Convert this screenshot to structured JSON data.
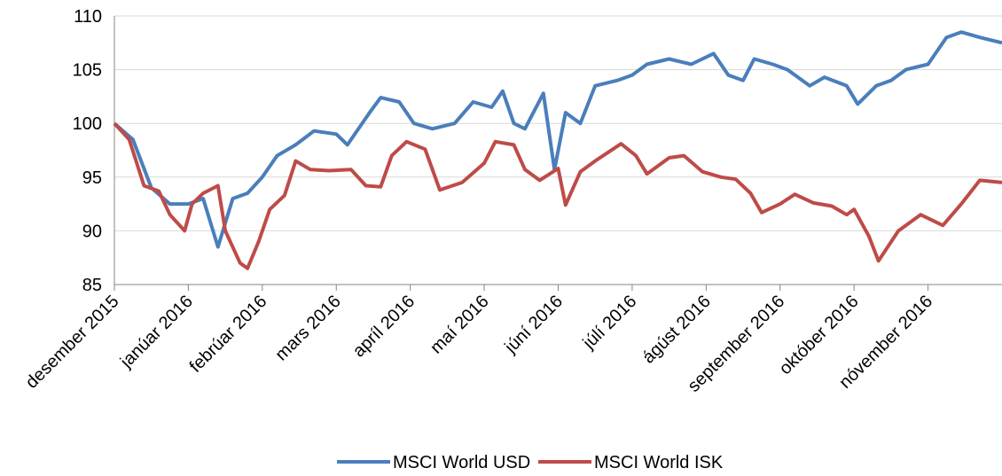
{
  "chart_data": {
    "type": "line",
    "xlim": [
      0,
      12
    ],
    "xticks": [
      {
        "value": 0,
        "label": "desember 2015"
      },
      {
        "value": 1,
        "label": "janúar 2016"
      },
      {
        "value": 2,
        "label": "febrúar 2016"
      },
      {
        "value": 3,
        "label": "mars 2016"
      },
      {
        "value": 4,
        "label": "apríl 2016"
      },
      {
        "value": 5,
        "label": "maí 2016"
      },
      {
        "value": 6,
        "label": "júní 2016"
      },
      {
        "value": 7,
        "label": "júlí 2016"
      },
      {
        "value": 8,
        "label": "ágúst 2016"
      },
      {
        "value": 9,
        "label": "september 2016"
      },
      {
        "value": 10,
        "label": "október 2016"
      },
      {
        "value": 11,
        "label": "nóvember 2016"
      }
    ],
    "ylim": [
      85,
      110
    ],
    "yticks": [
      85,
      90,
      95,
      100,
      105,
      110
    ],
    "grid": true,
    "legend": "bottom",
    "series": [
      {
        "name": "MSCI World USD",
        "color": "#4a7ebb",
        "x": [
          0,
          0.25,
          0.5,
          0.75,
          1.0,
          1.2,
          1.4,
          1.6,
          1.8,
          2.0,
          2.2,
          2.45,
          2.7,
          3.0,
          3.15,
          3.45,
          3.6,
          3.85,
          4.05,
          4.3,
          4.6,
          4.85,
          5.1,
          5.25,
          5.4,
          5.55,
          5.8,
          5.95,
          6.1,
          6.3,
          6.5,
          6.8,
          7.0,
          7.2,
          7.5,
          7.8,
          8.1,
          8.3,
          8.5,
          8.65,
          8.9,
          9.1,
          9.4,
          9.6,
          9.9,
          10.05,
          10.3,
          10.5,
          10.7,
          11.0,
          11.25,
          11.45,
          11.7,
          12.0
        ],
        "values": [
          100,
          98.5,
          94,
          92.5,
          92.5,
          93,
          88.5,
          93,
          93.5,
          95,
          97,
          98,
          99.3,
          99,
          98,
          101,
          102.4,
          102,
          100,
          99.5,
          100,
          102,
          101.5,
          103,
          100,
          99.5,
          102.8,
          95.7,
          101,
          100,
          103.5,
          104,
          104.5,
          105.5,
          106,
          105.5,
          106.5,
          104.5,
          104,
          106,
          105.5,
          105,
          103.5,
          104.3,
          103.5,
          101.8,
          103.5,
          104,
          105,
          105.5,
          108,
          108.5,
          108,
          107.5
        ]
      },
      {
        "name": "MSCI World ISK",
        "color": "#be4b48",
        "x": [
          0,
          0.2,
          0.4,
          0.6,
          0.75,
          0.95,
          1.05,
          1.2,
          1.4,
          1.5,
          1.7,
          1.8,
          1.95,
          2.1,
          2.3,
          2.45,
          2.65,
          2.9,
          3.2,
          3.4,
          3.6,
          3.75,
          3.95,
          4.2,
          4.4,
          4.7,
          4.85,
          5.0,
          5.15,
          5.4,
          5.55,
          5.75,
          6.0,
          6.1,
          6.3,
          6.5,
          6.85,
          7.05,
          7.2,
          7.5,
          7.7,
          7.95,
          8.2,
          8.4,
          8.6,
          8.75,
          9.0,
          9.2,
          9.45,
          9.7,
          9.9,
          10.0,
          10.2,
          10.33,
          10.6,
          10.9,
          11.2,
          11.45,
          11.7,
          12.0
        ],
        "values": [
          100,
          98.5,
          94.2,
          93.7,
          91.5,
          90,
          92.5,
          93.5,
          94.2,
          90,
          87,
          86.5,
          89,
          92,
          93.3,
          96.5,
          95.7,
          95.6,
          95.7,
          94.2,
          94.1,
          97,
          98.3,
          97.6,
          93.8,
          94.5,
          95.4,
          96.3,
          98.3,
          98,
          95.7,
          94.7,
          95.8,
          92.4,
          95.5,
          96.5,
          98.1,
          97,
          95.3,
          96.8,
          97,
          95.5,
          95,
          94.8,
          93.5,
          91.7,
          92.5,
          93.4,
          92.6,
          92.3,
          91.5,
          92,
          89.5,
          87.2,
          90,
          91.5,
          90.5,
          92.5,
          94.7,
          94.5
        ]
      }
    ]
  }
}
